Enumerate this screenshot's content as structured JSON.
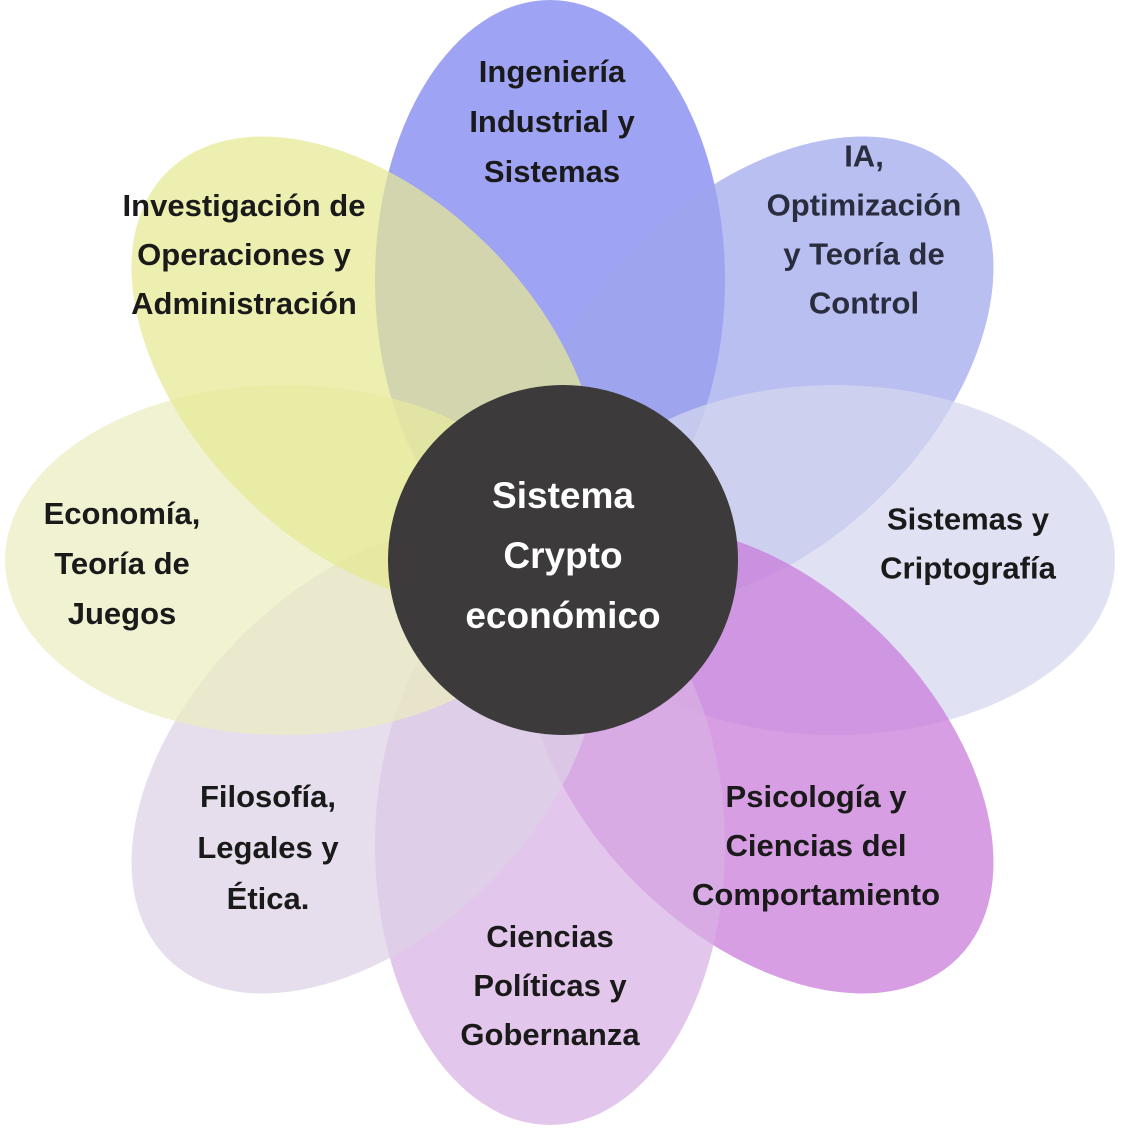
{
  "diagram": {
    "center": {
      "lines": [
        "Sistema",
        "Crypto",
        "económico"
      ],
      "fill": "#3c3a3b",
      "text_color": "#ffffff"
    },
    "petals": [
      {
        "id": "ingenieria",
        "lines": [
          "Ingeniería",
          "Industrial  y",
          "Sistemas"
        ],
        "fill": "#7a7ff0",
        "text_color": "#1a1a1a"
      },
      {
        "id": "ia",
        "lines": [
          "IA,",
          "Optimización",
          "y Teoría de",
          "Control"
        ],
        "fill": "#9ea6ec",
        "text_color": "#2a2d3e"
      },
      {
        "id": "sistemas-cripto",
        "lines": [
          "Sistemas y",
          "Criptografía"
        ],
        "fill": "#d4d7ee",
        "text_color": "#1a1a1a"
      },
      {
        "id": "psicologia",
        "lines": [
          "Psicología y",
          "Ciencias del",
          "Comportamiento"
        ],
        "fill": "#c778d9",
        "text_color": "#1a1a1a"
      },
      {
        "id": "ciencias-politicas",
        "lines": [
          "Ciencias",
          "Políticas y",
          "Gobernanza"
        ],
        "fill": "#d8b0e3",
        "text_color": "#1a1a1a"
      },
      {
        "id": "filosofia",
        "lines": [
          "Filosofía,",
          "Legales y",
          "Ética."
        ],
        "fill": "#ddd1e4",
        "text_color": "#1a1a1a"
      },
      {
        "id": "economia",
        "lines": [
          "Economía,",
          "Teoría de",
          "Juegos"
        ],
        "fill": "#ecedc0",
        "text_color": "#1a1a1a"
      },
      {
        "id": "investigacion",
        "lines": [
          "Investigación de",
          "Operaciones y",
          "Administración"
        ],
        "fill": "#e6e993",
        "text_color": "#1a1a1a"
      }
    ]
  }
}
